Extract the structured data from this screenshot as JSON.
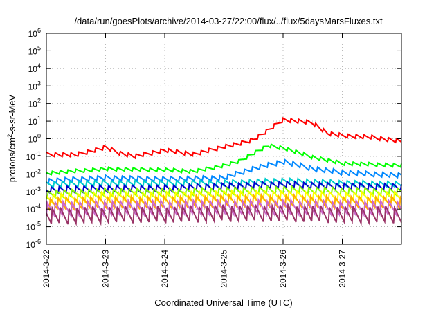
{
  "chart_data": {
    "type": "line",
    "title": "/data/run/goesPlots/archive/2014-03-27/22:00/flux/../flux/5daysMarsFluxes.txt",
    "xlabel": "Coordinated Universal Time (UTC)",
    "ylabel": "protons/cm²-s-sr-MeV",
    "ylabel_parts": {
      "pre": "protons/cm",
      "sup": "2",
      "post": "-s-sr-MeV"
    },
    "y_scale": "log",
    "ylim": [
      1e-06,
      1000000.0
    ],
    "y_ticks": [
      {
        "base": "10",
        "exp": "-6"
      },
      {
        "base": "10",
        "exp": "-5"
      },
      {
        "base": "10",
        "exp": "-4"
      },
      {
        "base": "10",
        "exp": "-3"
      },
      {
        "base": "10",
        "exp": "-2"
      },
      {
        "base": "10",
        "exp": "-1"
      },
      {
        "base": "10",
        "exp": "0"
      },
      {
        "base": "10",
        "exp": "1"
      },
      {
        "base": "10",
        "exp": "2"
      },
      {
        "base": "10",
        "exp": "3"
      },
      {
        "base": "10",
        "exp": "4"
      },
      {
        "base": "10",
        "exp": "5"
      },
      {
        "base": "10",
        "exp": "6"
      }
    ],
    "xlim": [
      "2014-03-22",
      "2014-03-28"
    ],
    "x_ticks": [
      "2014-3-22",
      "2014-3-23",
      "2014-3-24",
      "2014-3-25",
      "2014-3-26",
      "2014-3-27"
    ],
    "grid": true,
    "series": [
      {
        "color": "#ff0000",
        "teeth": 0.25,
        "x": [
          "2014-03-22",
          "2014-03-22T12:00",
          "2014-03-23",
          "2014-03-23T06:00",
          "2014-03-23T12:00",
          "2014-03-24",
          "2014-03-24T12:00",
          "2014-03-25",
          "2014-03-25T06:00",
          "2014-03-25T12:00",
          "2014-03-25T18:00",
          "2014-03-26",
          "2014-03-26T12:00",
          "2014-03-26T18:00",
          "2014-03-27",
          "2014-03-27T12:00",
          "2014-03-28"
        ],
        "y": [
          0.13,
          0.12,
          0.32,
          0.15,
          0.1,
          0.22,
          0.13,
          0.35,
          0.5,
          0.9,
          3,
          12,
          8,
          2,
          1.5,
          1.2,
          0.7
        ]
      },
      {
        "color": "#00ff00",
        "teeth": 0.22,
        "x": [
          "2014-03-22",
          "2014-03-23",
          "2014-03-24",
          "2014-03-24T12:00",
          "2014-03-25",
          "2014-03-25T06:00",
          "2014-03-25T12:00",
          "2014-03-25T18:00",
          "2014-03-26",
          "2014-03-26T12:00",
          "2014-03-27",
          "2014-03-28"
        ],
        "y": [
          0.011,
          0.019,
          0.017,
          0.014,
          0.03,
          0.05,
          0.15,
          0.4,
          0.3,
          0.09,
          0.04,
          0.03
        ]
      },
      {
        "color": "#0088ff",
        "teeth": 0.3,
        "x": [
          "2014-03-22",
          "2014-03-23",
          "2014-03-24",
          "2014-03-25",
          "2014-03-25T12:00",
          "2014-03-26",
          "2014-03-26T12:00",
          "2014-03-27",
          "2014-03-28"
        ],
        "y": [
          0.004,
          0.006,
          0.005,
          0.006,
          0.02,
          0.05,
          0.02,
          0.012,
          0.008
        ]
      },
      {
        "color": "#00cccc",
        "teeth": 0.35,
        "x": [
          "2014-03-22",
          "2014-03-23",
          "2014-03-24",
          "2014-03-25",
          "2014-03-26",
          "2014-03-27",
          "2014-03-28"
        ],
        "y": [
          0.0025,
          0.003,
          0.003,
          0.003,
          0.004,
          0.003,
          0.0025
        ]
      },
      {
        "color": "#0000cc",
        "teeth": 0.4,
        "x": [
          "2014-03-22",
          "2014-03-23",
          "2014-03-24",
          "2014-03-25",
          "2014-03-26",
          "2014-03-27",
          "2014-03-28"
        ],
        "y": [
          0.0012,
          0.0015,
          0.0015,
          0.002,
          0.0025,
          0.002,
          0.0018
        ]
      },
      {
        "color": "#88ff00",
        "teeth": 0.45,
        "x": [
          "2014-03-22",
          "2014-03-23",
          "2014-03-24",
          "2014-03-25",
          "2014-03-26",
          "2014-03-27",
          "2014-03-28"
        ],
        "y": [
          0.0007,
          0.0009,
          0.0009,
          0.001,
          0.0012,
          0.001,
          0.0009
        ]
      },
      {
        "color": "#ffff00",
        "teeth": 0.55,
        "x": [
          "2014-03-22",
          "2014-03-23",
          "2014-03-24",
          "2014-03-25",
          "2014-03-26",
          "2014-03-27",
          "2014-03-28"
        ],
        "y": [
          0.0004,
          0.0005,
          0.0005,
          0.0006,
          0.0006,
          0.0005,
          0.0005
        ]
      },
      {
        "color": "#ffaa00",
        "teeth": 0.7,
        "x": [
          "2014-03-22",
          "2014-03-23",
          "2014-03-24",
          "2014-03-25",
          "2014-03-26",
          "2014-03-27",
          "2014-03-28"
        ],
        "y": [
          0.0002,
          0.00025,
          0.00025,
          0.0003,
          0.0003,
          0.00025,
          0.00025
        ]
      },
      {
        "color": "#cc66cc",
        "teeth": 0.85,
        "x": [
          "2014-03-22",
          "2014-03-23",
          "2014-03-24",
          "2014-03-25",
          "2014-03-26",
          "2014-03-27",
          "2014-03-28"
        ],
        "y": [
          0.0001,
          0.00012,
          0.00012,
          0.00013,
          0.00013,
          0.00012,
          0.00012
        ]
      },
      {
        "color": "#993366",
        "teeth": 1.0,
        "x": [
          "2014-03-22",
          "2014-03-23",
          "2014-03-24",
          "2014-03-25",
          "2014-03-26",
          "2014-03-27",
          "2014-03-28"
        ],
        "y": [
          4e-05,
          5e-05,
          5e-05,
          6e-05,
          6e-05,
          5e-05,
          5e-05
        ]
      }
    ]
  }
}
